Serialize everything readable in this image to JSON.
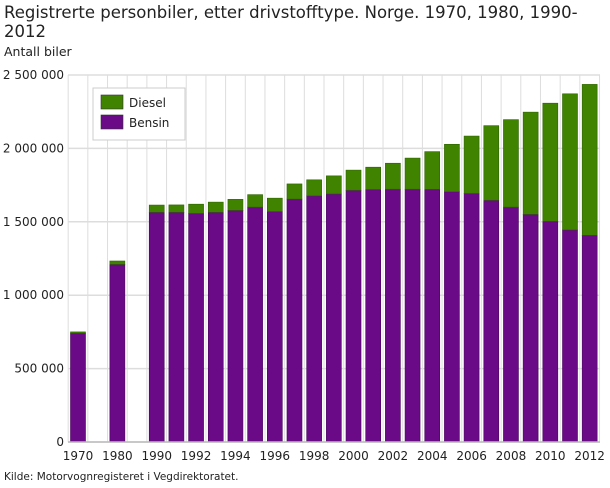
{
  "chart_data": {
    "type": "bar",
    "stacked": true,
    "title": "Registrerte personbiler, etter drivstofftype. Norge. 1970, 1980, 1990-2012",
    "ylabel": "Antall biler",
    "xlabel": "",
    "source": "Kilde: Motorvognregisteret i Vegdirektoratet.",
    "ylim": [
      0,
      2500000
    ],
    "yticks": [
      "0",
      "500 000",
      "1 000 000",
      "1 500 000",
      "2 000 000",
      "2 500 000"
    ],
    "grid": true,
    "legend_position": "top-left",
    "categories": [
      "1970",
      "1980",
      "1990",
      "1991",
      "1992",
      "1993",
      "1994",
      "1995",
      "1996",
      "1997",
      "1998",
      "1999",
      "2000",
      "2001",
      "2002",
      "2003",
      "2004",
      "2005",
      "2006",
      "2007",
      "2008",
      "2009",
      "2010",
      "2011",
      "2012"
    ],
    "xtick_labels": [
      "1970",
      "1980",
      "1990",
      "1992",
      "1994",
      "1996",
      "1998",
      "2000",
      "2002",
      "2004",
      "2006",
      "2008",
      "2010",
      "2012"
    ],
    "series": [
      {
        "name": "Bensin",
        "color": "#6a0a87",
        "values": [
          740000,
          1210000,
          1565000,
          1565000,
          1557000,
          1565000,
          1578000,
          1600000,
          1570000,
          1655000,
          1677000,
          1690000,
          1715000,
          1720000,
          1722000,
          1722000,
          1721000,
          1705000,
          1693000,
          1647000,
          1600000,
          1551000,
          1503000,
          1445000,
          1408000
        ]
      },
      {
        "name": "Diesel",
        "color": "#3f8300",
        "values": [
          10000,
          23000,
          49000,
          50000,
          63000,
          69000,
          75000,
          85000,
          91000,
          103000,
          109000,
          123000,
          137000,
          152000,
          177000,
          212000,
          257000,
          323000,
          391000,
          508000,
          596000,
          696000,
          805000,
          927000,
          1028000
        ]
      }
    ]
  }
}
